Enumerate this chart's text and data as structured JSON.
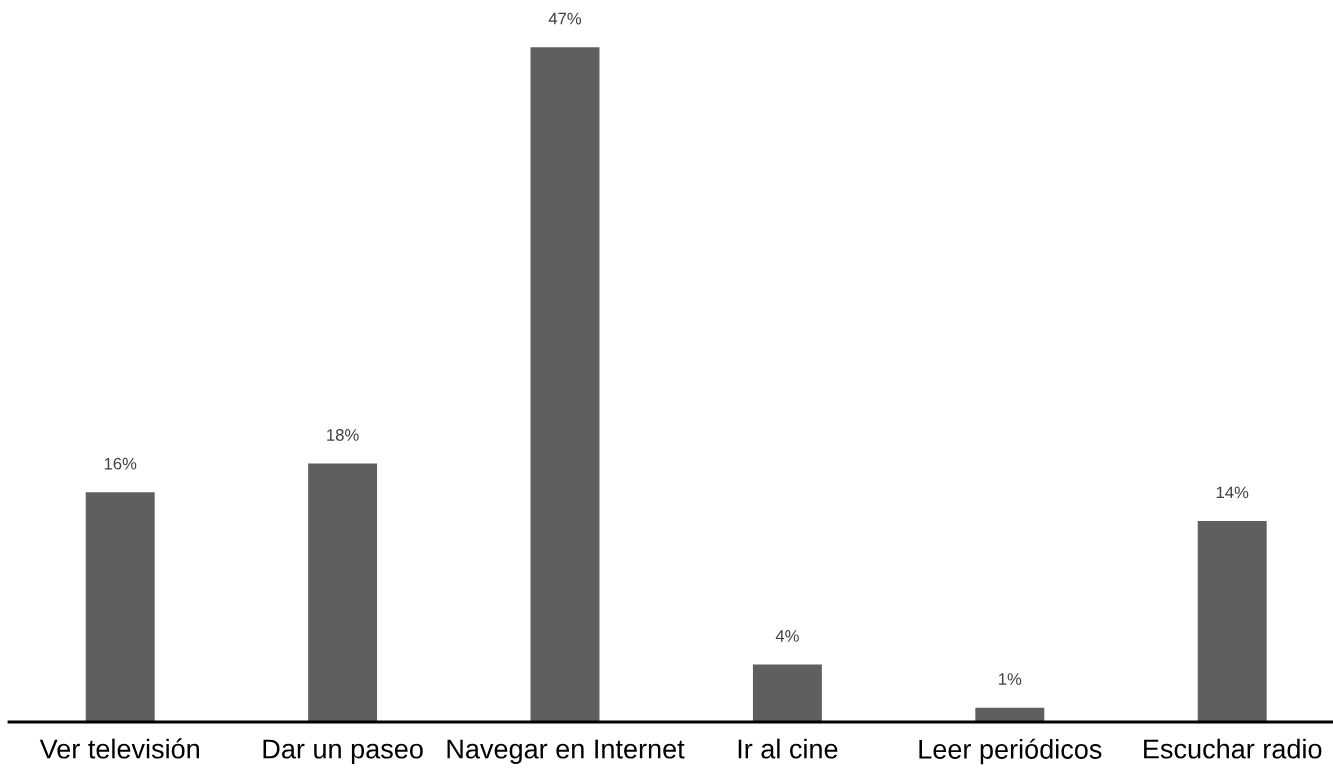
{
  "chart_data": {
    "type": "bar",
    "categories": [
      "Ver televisión",
      "Dar un paseo",
      "Navegar en Internet",
      "Ir al cine",
      "Leer periódicos",
      "Escuchar radio"
    ],
    "values": [
      16,
      18,
      47,
      4,
      1,
      14
    ],
    "value_labels": [
      "16%",
      "18%",
      "47%",
      "4%",
      "1%",
      "14%"
    ],
    "color": "#5f5f5f",
    "grid": false,
    "legend": false,
    "tick_labels": "x"
  }
}
